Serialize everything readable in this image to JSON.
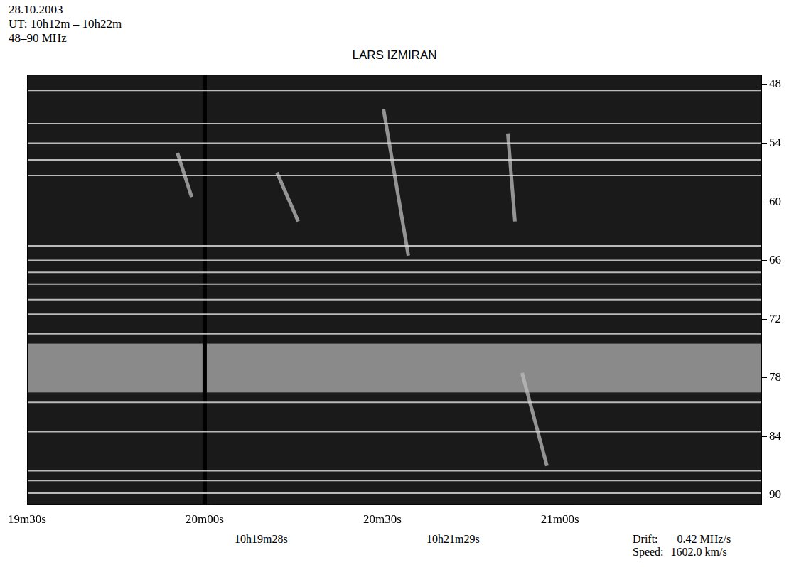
{
  "chart_data": {
    "type": "spectrogram",
    "title": "LARS IZMIRAN",
    "header": [
      "28.10.2003",
      "UT: 10h12m – 10h22m",
      "48–90 MHz"
    ],
    "xlim": [
      1170,
      1294
    ],
    "xticks": [
      {
        "value": 1170,
        "label": "19m30s"
      },
      {
        "value": 1200,
        "label": "20m00s"
      },
      {
        "value": 1230,
        "label": "20m30s"
      },
      {
        "value": 1260,
        "label": "21m00s"
      }
    ],
    "ylim": [
      47,
      91
    ],
    "yticks": [
      48,
      54,
      60,
      66,
      72,
      78,
      84,
      90
    ],
    "annotations": [
      "10h19m28s",
      "10h21m29s"
    ],
    "readout": [
      [
        "Drift:",
        "−0.42 MHz/s"
      ],
      [
        "Speed:",
        "1602.0 km/s"
      ]
    ],
    "interference_lines": [
      48.6,
      52,
      54,
      55.7,
      57.3,
      64.5,
      66,
      67.2,
      68.4,
      70,
      71.5,
      73.5,
      80.5,
      83.5,
      87.5,
      88.5,
      89.8
    ],
    "bright_band": [
      74.5,
      79.5
    ],
    "data_gaps": [
      1200
    ],
    "bursts": [
      {
        "t": [
          1195.4,
          1197.8
        ],
        "f": [
          55,
          59.5
        ]
      },
      {
        "t": [
          1212.2,
          1215.8
        ],
        "f": [
          57,
          62
        ]
      },
      {
        "t": [
          1230.2,
          1234.4
        ],
        "f": [
          50.5,
          65.5
        ]
      },
      {
        "t": [
          1251.2,
          1252.4
        ],
        "f": [
          53,
          62
        ]
      },
      {
        "t": [
          1253.6,
          1257.8
        ],
        "f": [
          77.5,
          87
        ]
      }
    ],
    "grid": false
  }
}
